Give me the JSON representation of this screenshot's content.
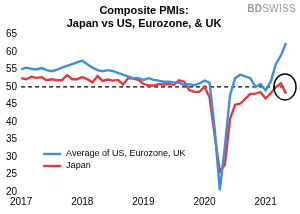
{
  "chart_data": {
    "type": "line",
    "title": [
      "Composite PMIs:",
      "Japan vs US, Eurozone, & UK"
    ],
    "annotations": [
      "BDSWISS"
    ],
    "categories": [
      "2017",
      null,
      null,
      null,
      null,
      null,
      null,
      null,
      null,
      null,
      null,
      null,
      "2018",
      null,
      null,
      null,
      null,
      null,
      null,
      null,
      null,
      null,
      null,
      null,
      "2019",
      null,
      null,
      null,
      null,
      null,
      null,
      null,
      null,
      null,
      null,
      null,
      "2020",
      null,
      null,
      null,
      null,
      null,
      null,
      null,
      null,
      null,
      null,
      null,
      "2021",
      null,
      null,
      null,
      null
    ],
    "series": [
      {
        "name": "Average of US, Eurozone, UK",
        "color": "#3d8fdc",
        "values": [
          55.0,
          55.5,
          55.2,
          55.0,
          55.4,
          54.8,
          54.5,
          54.9,
          55.5,
          56.0,
          56.5,
          57.0,
          57.5,
          56.5,
          55.5,
          54.8,
          54.5,
          54.8,
          54.5,
          54.0,
          53.5,
          53.0,
          52.5,
          52.5,
          52.0,
          52.5,
          52.0,
          51.8,
          51.5,
          51.5,
          51.3,
          51.2,
          50.5,
          50.8,
          50.5,
          51.0,
          51.8,
          51.2,
          38.0,
          20.5,
          33.0,
          47.5,
          52.5,
          53.5,
          53.0,
          52.5,
          50.0,
          50.8,
          49.0,
          51.5,
          56.5,
          59.0,
          62.5
        ]
      },
      {
        "name": "Japan",
        "color": "#e0393e",
        "values": [
          52.5,
          52.2,
          52.9,
          52.6,
          52.8,
          51.9,
          52.2,
          51.9,
          51.9,
          53.4,
          52.2,
          52.2,
          52.8,
          52.2,
          51.3,
          53.1,
          51.7,
          52.1,
          51.8,
          52.0,
          50.7,
          52.5,
          52.4,
          52.0,
          50.9,
          50.4,
          50.4,
          50.8,
          50.7,
          50.8,
          50.6,
          51.9,
          51.5,
          49.1,
          48.6,
          48.6,
          50.1,
          47.0,
          36.2,
          25.8,
          27.8,
          40.8,
          44.9,
          45.2,
          46.6,
          48.0,
          48.1,
          48.5,
          46.7,
          48.2,
          49.9,
          51.0,
          48.1
        ]
      }
    ],
    "hline": 50,
    "ylim": [
      20,
      65
    ],
    "yticks": [
      20,
      25,
      30,
      35,
      40,
      45,
      50,
      55,
      60,
      65
    ],
    "grid": false,
    "legend": "lower left"
  }
}
